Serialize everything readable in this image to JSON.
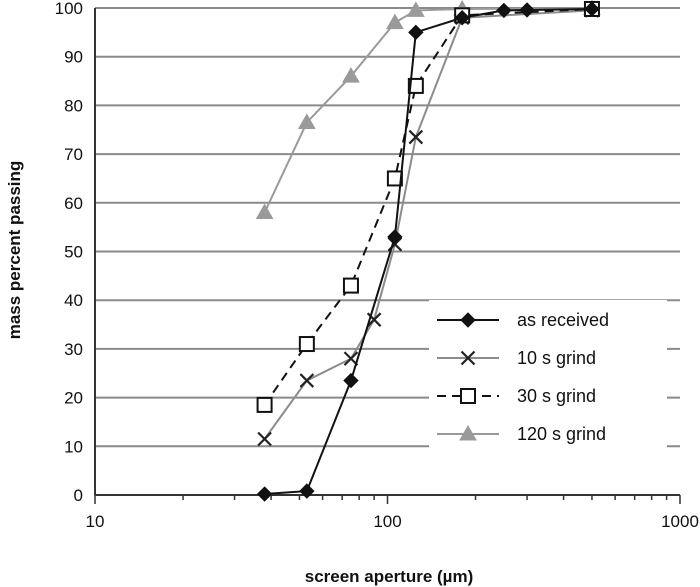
{
  "chart_data": {
    "type": "line",
    "xlabel": "screen aperture (µm)",
    "ylabel": "mass percent passing",
    "xscale": "log",
    "xlim": [
      10,
      1000
    ],
    "ylim": [
      0,
      100
    ],
    "x_ticks": [
      "10",
      "100",
      "1000"
    ],
    "y_ticks": [
      "0",
      "10",
      "20",
      "30",
      "40",
      "50",
      "60",
      "70",
      "80",
      "90",
      "100"
    ],
    "grid": "horizontal",
    "legend_position": "bottom-right",
    "series": [
      {
        "name": "as received",
        "color": "#111111",
        "dash": "solid",
        "marker": "diamond",
        "points": [
          [
            38,
            0.2
          ],
          [
            53,
            0.8
          ],
          [
            75,
            23.5
          ],
          [
            106,
            53
          ],
          [
            125,
            95
          ],
          [
            180,
            98
          ],
          [
            250,
            99.5
          ],
          [
            300,
            99.6
          ],
          [
            500,
            99.8
          ]
        ]
      },
      {
        "name": "10 s grind",
        "color": "#8c8c8c",
        "dash": "solid",
        "marker": "x",
        "points": [
          [
            38,
            11.5
          ],
          [
            53,
            23.5
          ],
          [
            75,
            28
          ],
          [
            90,
            36
          ],
          [
            106,
            51.5
          ],
          [
            125,
            73.5
          ],
          [
            180,
            98
          ],
          [
            500,
            99.5
          ]
        ]
      },
      {
        "name": "30 s grind",
        "color": "#111111",
        "dash": "dashed",
        "marker": "square",
        "points": [
          [
            38,
            18.5
          ],
          [
            53,
            31
          ],
          [
            75,
            43
          ],
          [
            106,
            65
          ],
          [
            125,
            84
          ],
          [
            180,
            98.5
          ],
          [
            500,
            99.8
          ]
        ]
      },
      {
        "name": "120 s grind",
        "color": "#9a9a9a",
        "dash": "solid",
        "marker": "triangle",
        "points": [
          [
            38,
            58
          ],
          [
            53,
            76.5
          ],
          [
            75,
            86
          ],
          [
            106,
            97
          ],
          [
            125,
            99.5
          ],
          [
            180,
            99.8
          ],
          [
            500,
            99.9
          ]
        ]
      }
    ]
  }
}
